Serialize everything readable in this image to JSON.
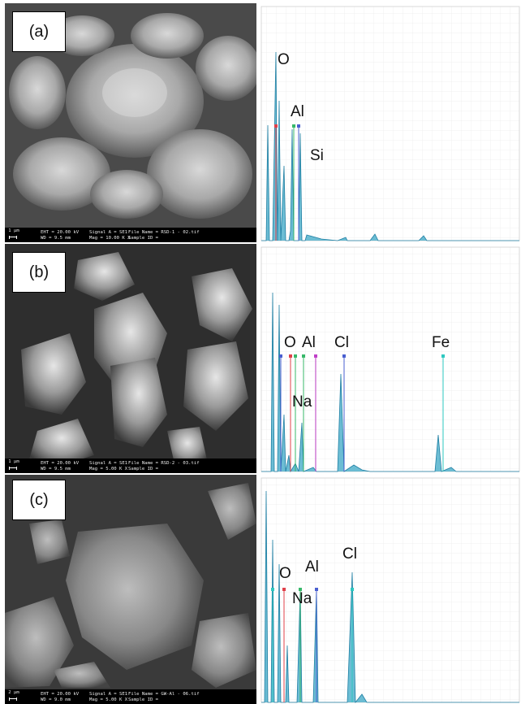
{
  "panels": [
    {
      "id": "a",
      "label": "(a)",
      "sem_info": {
        "scale": "1 µm",
        "line1": [
          "EHT = 20.00 kV",
          "Signal A = SE1",
          "File Name = RSD-1 - 02.tif"
        ],
        "line2": [
          "WD = 9.5 mm",
          "Mag = 10.00 K X",
          "Sample ID ="
        ]
      },
      "eds_labels": [
        "O",
        "Al",
        "Si"
      ],
      "eds_colors": {
        "spectrum": "#3ba7c6",
        "marker_red": "#e0404a",
        "marker_green": "#38b86a",
        "marker_blue": "#4a5fd0"
      }
    },
    {
      "id": "b",
      "label": "(b)",
      "sem_info": {
        "scale": "1 µm",
        "line1": [
          "EHT = 20.00 kV",
          "Signal A = SE1",
          "File Name = RSD-2 - 03.tif"
        ],
        "line2": [
          "WD = 9.5 mm",
          "Mag = 5.00 K X",
          "Sample ID ="
        ]
      },
      "eds_labels": [
        "O",
        "Al",
        "Cl",
        "Fe",
        "Na"
      ],
      "eds_colors": {
        "spectrum": "#3ba7c6",
        "marker_magenta": "#c040c8",
        "marker_cyan": "#2ec8c0"
      }
    },
    {
      "id": "c",
      "label": "(c)",
      "sem_info": {
        "scale": "2 µm",
        "line1": [
          "EHT = 20.00 kV",
          "Signal A = SE1",
          "File Name = GW-Al - 06.tif"
        ],
        "line2": [
          "WD = 9.0 mm",
          "Mag = 5.00 K X",
          "Sample ID ="
        ]
      },
      "eds_labels": [
        "O",
        "Al",
        "Cl",
        "Na"
      ],
      "eds_colors": {
        "spectrum": "#3ba7c6"
      }
    }
  ]
}
